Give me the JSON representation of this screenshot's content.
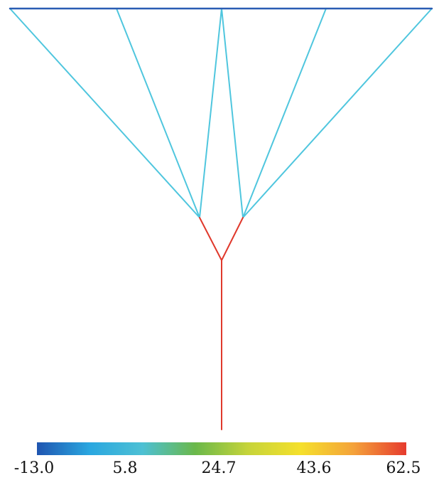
{
  "colors": {
    "top_chord": "#2a5cb3",
    "lower_members": "#4fc6de",
    "trunk": "#e0392c",
    "colormap": [
      "#1f55b0",
      "#2aa7e0",
      "#4dc0d4",
      "#6ab84a",
      "#c6d43a",
      "#f5e02c",
      "#f4a23a",
      "#e63b2e"
    ]
  },
  "colorbar": {
    "ticks": [
      "-13.0",
      "5.8",
      "24.7",
      "43.6",
      "62.5"
    ],
    "min": -13.0,
    "max": 62.5
  }
}
